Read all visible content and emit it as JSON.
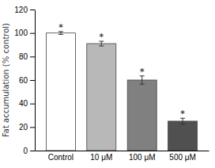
{
  "chart_data": {
    "type": "bar",
    "ylabel": "Fat accumulation (% control)",
    "categories": [
      "Control",
      "10 μM",
      "100 μM",
      "500 μM"
    ],
    "values": [
      100,
      91,
      60,
      25
    ],
    "errors": [
      1.2,
      2.0,
      3.5,
      2.5
    ],
    "significance": [
      "*",
      "*",
      "*",
      "*"
    ],
    "colors": [
      "#ffffff",
      "#b8b8b8",
      "#808080",
      "#505050"
    ],
    "ylim": [
      0,
      120
    ],
    "yticks": [
      0,
      20,
      40,
      60,
      80,
      100,
      120
    ],
    "grid": false
  }
}
